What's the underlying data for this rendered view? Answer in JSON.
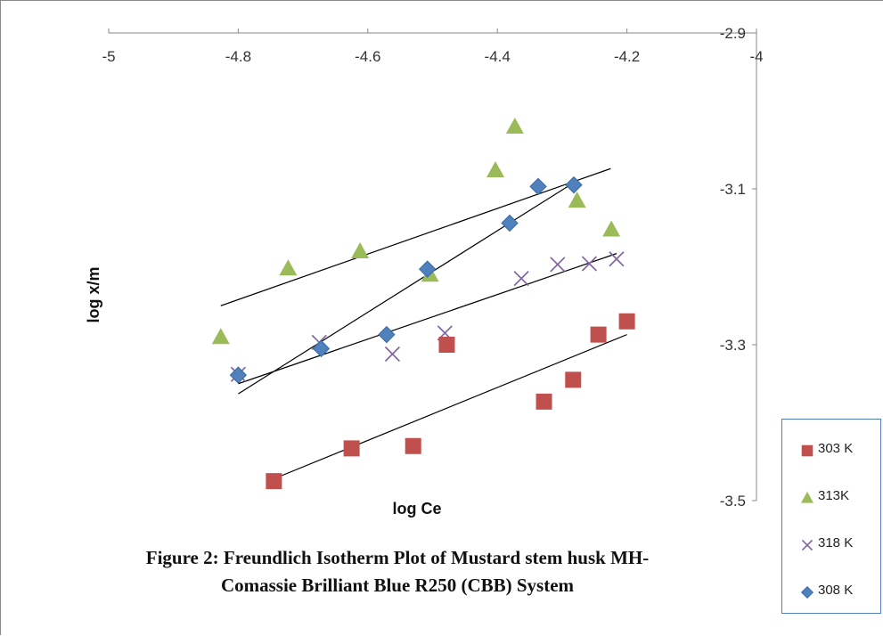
{
  "caption": {
    "line1": "Figure 2: Freundlich Isotherm Plot of Mustard stem husk MH-",
    "line2": "Comassie Brilliant Blue R250 (CBB) System"
  },
  "chart_data": {
    "type": "scatter",
    "title": "",
    "xlabel": "log Ce",
    "ylabel": "log x/m",
    "xlim": [
      -5,
      -4
    ],
    "ylim": [
      -3.5,
      -2.9
    ],
    "x_ticks": [
      "-5",
      "-4.8",
      "-4.6",
      "-4.4",
      "-4.2",
      "-4"
    ],
    "y_ticks": [
      "-2.9",
      "-3.1",
      "-3.3",
      "-3.5"
    ],
    "y_axis_position": "right",
    "x_axis_position": "top",
    "grid": false,
    "legend_position": "bottom-right",
    "series": [
      {
        "name": "303 K",
        "marker": "square",
        "color": "#c0504d",
        "points": [
          [
            -4.745,
            -3.475
          ],
          [
            -4.625,
            -3.433
          ],
          [
            -4.53,
            -3.43
          ],
          [
            -4.478,
            -3.3
          ],
          [
            -4.328,
            -3.373
          ],
          [
            -4.283,
            -3.345
          ],
          [
            -4.244,
            -3.287
          ],
          [
            -4.2,
            -3.27
          ]
        ],
        "trendline": [
          [
            -4.745,
            -3.472
          ],
          [
            -4.2,
            -3.287
          ]
        ]
      },
      {
        "name": "313K",
        "marker": "triangle",
        "color": "#9bbb59",
        "points": [
          [
            -4.827,
            -3.29
          ],
          [
            -4.723,
            -3.202
          ],
          [
            -4.612,
            -3.18
          ],
          [
            -4.504,
            -3.21
          ],
          [
            -4.403,
            -3.076
          ],
          [
            -4.373,
            -3.02
          ],
          [
            -4.277,
            -3.115
          ],
          [
            -4.224,
            -3.152
          ]
        ],
        "trendline": [
          [
            -4.827,
            -3.25
          ],
          [
            -4.225,
            -3.074
          ]
        ]
      },
      {
        "name": "318 K",
        "marker": "x",
        "color": "#8064a2",
        "points": [
          [
            -4.8,
            -3.338
          ],
          [
            -4.675,
            -3.297
          ],
          [
            -4.562,
            -3.312
          ],
          [
            -4.481,
            -3.285
          ],
          [
            -4.363,
            -3.215
          ],
          [
            -4.307,
            -3.197
          ],
          [
            -4.258,
            -3.196
          ],
          [
            -4.216,
            -3.19
          ]
        ],
        "trendline": [
          [
            -4.8,
            -3.35
          ],
          [
            -4.216,
            -3.183
          ]
        ]
      },
      {
        "name": "308 K",
        "marker": "diamond",
        "color": "#4f81bd",
        "points": [
          [
            -4.8,
            -3.339
          ],
          [
            -4.672,
            -3.305
          ],
          [
            -4.571,
            -3.287
          ],
          [
            -4.508,
            -3.203
          ],
          [
            -4.381,
            -3.144
          ],
          [
            -4.337,
            -3.097
          ],
          [
            -4.282,
            -3.095
          ]
        ],
        "trendline": [
          [
            -4.8,
            -3.363
          ],
          [
            -4.282,
            -3.092
          ]
        ]
      }
    ]
  }
}
